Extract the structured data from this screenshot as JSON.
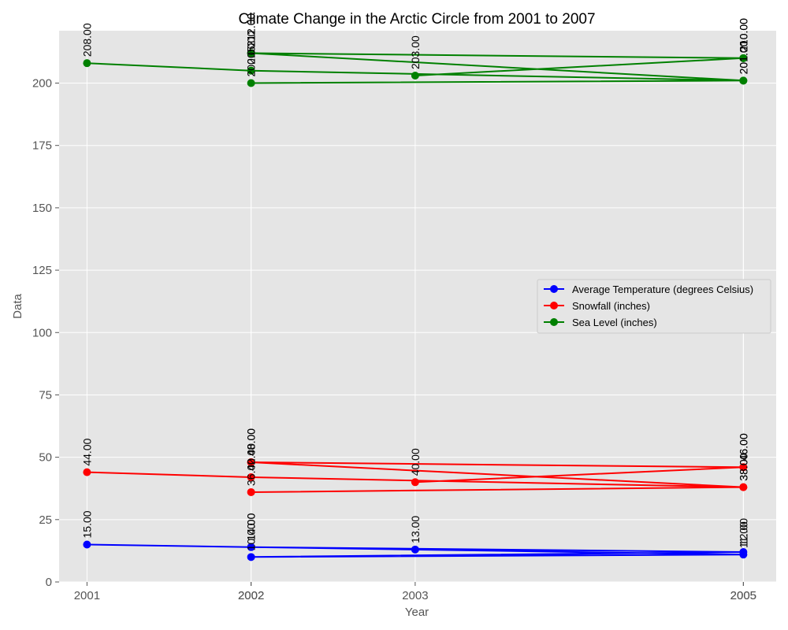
{
  "chart_data": {
    "type": "line",
    "title": "Climate Change in the Arctic Circle from 2001 to 2007",
    "xlabel": "Year",
    "ylabel": "Data",
    "x_ticks": [
      "2001",
      "2002",
      "2002",
      "2003",
      "2005",
      "2005"
    ],
    "y_ticks": [
      "0",
      "25",
      "50",
      "75",
      "100",
      "125",
      "150",
      "175",
      "200"
    ],
    "ylim": [
      0,
      221
    ],
    "grid": true,
    "legend_position": "center-right",
    "series": [
      {
        "name": "Average Temperature (degrees Celsius)",
        "color": "#0000ff",
        "points": [
          {
            "x": 2001,
            "y": 15,
            "label": "15.00"
          },
          {
            "x": 2002,
            "y": 14,
            "label": "14.00"
          },
          {
            "x": 2005,
            "y": 12,
            "label": "12.00"
          },
          {
            "x": 2002,
            "y": 10,
            "label": "10.00"
          },
          {
            "x": 2005,
            "y": 11,
            "label": "11.00"
          },
          {
            "x": 2002,
            "y": 14,
            "label": "14.00"
          },
          {
            "x": 2003,
            "y": 13,
            "label": "13.00"
          }
        ]
      },
      {
        "name": "Snowfall (inches)",
        "color": "#ff0000",
        "points": [
          {
            "x": 2001,
            "y": 44,
            "label": "44.00"
          },
          {
            "x": 2002,
            "y": 42,
            "label": "42.00"
          },
          {
            "x": 2005,
            "y": 38,
            "label": "38.00"
          },
          {
            "x": 2002,
            "y": 36,
            "label": "36.00"
          },
          {
            "x": 2005,
            "y": 38,
            "label": "38.00"
          },
          {
            "x": 2002,
            "y": 48,
            "label": "48.00"
          },
          {
            "x": 2005,
            "y": 46,
            "label": "46.00"
          },
          {
            "x": 2003,
            "y": 40,
            "label": "40.00"
          },
          {
            "x": 2005,
            "y": 46,
            "label": "46.00"
          },
          {
            "x": 2002,
            "y": 48,
            "label": "48.00"
          }
        ]
      },
      {
        "name": "Sea Level (inches)",
        "color": "#008000",
        "points": [
          {
            "x": 2001,
            "y": 208,
            "label": "208.00"
          },
          {
            "x": 2002,
            "y": 205,
            "label": "205.00"
          },
          {
            "x": 2005,
            "y": 201,
            "label": "201.00"
          },
          {
            "x": 2002,
            "y": 200,
            "label": "200.00"
          },
          {
            "x": 2005,
            "y": 201,
            "label": "201.00"
          },
          {
            "x": 2002,
            "y": 212,
            "label": "212.00"
          },
          {
            "x": 2005,
            "y": 210,
            "label": "210.00"
          },
          {
            "x": 2003,
            "y": 203,
            "label": "203.00"
          },
          {
            "x": 2005,
            "y": 210,
            "label": "210.00"
          },
          {
            "x": 2002,
            "y": 212,
            "label": "212.00"
          }
        ]
      }
    ]
  }
}
